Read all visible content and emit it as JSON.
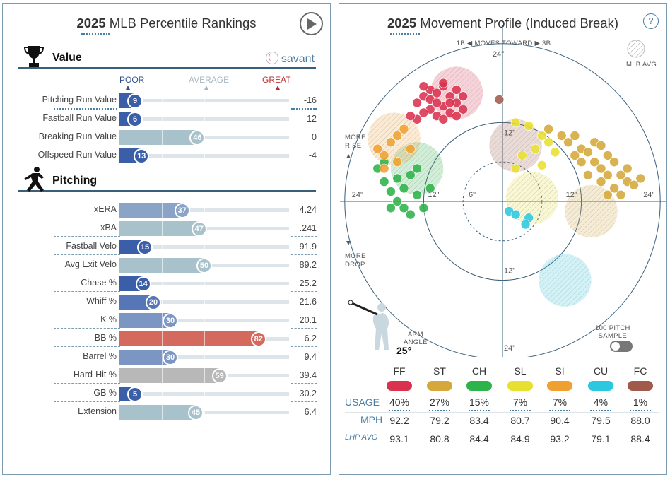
{
  "left_panel": {
    "title_year": "2025",
    "title_rest": "MLB Percentile Rankings",
    "value_section": "Value",
    "savant_label": "savant",
    "pitching_section": "Pitching",
    "scale": {
      "poor": "POOR",
      "average": "AVERAGE",
      "great": "GREAT"
    }
  },
  "right_panel": {
    "title_year": "2025",
    "title_rest": "Movement Profile (Induced Break)",
    "help": "?",
    "direction": "1B ◀  MOVES TOWARD  ▶ 3B",
    "mlb_avg": "MLB AVG.",
    "more_rise": "MORE\nRISE",
    "more_drop": "MORE\nDROP",
    "ring_labels": {
      "top24": "24\"",
      "top12": "12\"",
      "left24": "24\"",
      "left12": "12\"",
      "center6": "6\"",
      "right12": "12\"",
      "right24": "24\"",
      "bottom12": "12\"",
      "bottom24": "24\""
    },
    "arm_angle_label": "ARM\nANGLE",
    "arm_angle_value": "25°",
    "sample_toggle": "100 PITCH\nSAMPLE",
    "table_rows": {
      "usage": "USAGE",
      "mph": "MPH",
      "lhp": "LHP AVG"
    }
  },
  "chart_data": [
    {
      "type": "bar",
      "title": "2025 MLB Percentile Rankings",
      "groups": [
        {
          "name": "Value",
          "rows": [
            {
              "stat": "Pitching Run Value",
              "percentile": 9,
              "value": "-16",
              "color": "#3b5ea8"
            },
            {
              "stat": "Fastball Run Value",
              "percentile": 6,
              "value": "-12",
              "color": "#3b5ea8"
            },
            {
              "stat": "Breaking Run Value",
              "percentile": 46,
              "value": "0",
              "color": "#a8c2cc"
            },
            {
              "stat": "Offspeed Run Value",
              "percentile": 13,
              "value": "-4",
              "color": "#3b5ea8"
            }
          ]
        },
        {
          "name": "Pitching",
          "rows": [
            {
              "stat": "xERA",
              "percentile": 37,
              "value": "4.24",
              "color": "#8aa4c8"
            },
            {
              "stat": "xBA",
              "percentile": 47,
              "value": ".241",
              "color": "#a8c2cc"
            },
            {
              "stat": "Fastball Velo",
              "percentile": 15,
              "value": "91.9",
              "color": "#3b5ea8"
            },
            {
              "stat": "Avg Exit Velo",
              "percentile": 50,
              "value": "89.2",
              "color": "#a8c2cc"
            },
            {
              "stat": "Chase %",
              "percentile": 14,
              "value": "25.2",
              "color": "#3b5ea8"
            },
            {
              "stat": "Whiff %",
              "percentile": 20,
              "value": "21.6",
              "color": "#5676b8"
            },
            {
              "stat": "K %",
              "percentile": 30,
              "value": "20.1",
              "color": "#7c96c4"
            },
            {
              "stat": "BB %",
              "percentile": 82,
              "value": "6.2",
              "color": "#d46a5e"
            },
            {
              "stat": "Barrel %",
              "percentile": 30,
              "value": "9.4",
              "color": "#7c96c4"
            },
            {
              "stat": "Hard-Hit %",
              "percentile": 59,
              "value": "39.4",
              "color": "#b8b8b8"
            },
            {
              "stat": "GB %",
              "percentile": 5,
              "value": "30.2",
              "color": "#3b5ea8"
            },
            {
              "stat": "Extension",
              "percentile": 45,
              "value": "6.4",
              "color": "#a8c2cc"
            }
          ]
        }
      ],
      "xlim": [
        0,
        100
      ]
    },
    {
      "type": "scatter",
      "title": "2025 Movement Profile (Induced Break)",
      "xlim": [
        -24,
        24
      ],
      "ylim": [
        -24,
        24
      ],
      "pitches": [
        {
          "code": "FF",
          "color": "#d9324e",
          "usage": "40%",
          "mph": "92.2",
          "lhp_avg": "93.1",
          "avg": {
            "x": -10,
            "y": 15.5
          },
          "mlb_avg": {
            "x": -7,
            "y": 16.5
          }
        },
        {
          "code": "ST",
          "color": "#d4a83a",
          "usage": "27%",
          "mph": "79.2",
          "lhp_avg": "80.8",
          "avg": {
            "x": 14,
            "y": 2.5
          },
          "mlb_avg": {
            "x": 13.5,
            "y": -1.5
          }
        },
        {
          "code": "CH",
          "color": "#2eb24a",
          "usage": "15%",
          "mph": "83.4",
          "lhp_avg": "84.4",
          "avg": {
            "x": -17,
            "y": 3.5
          },
          "mlb_avg": {
            "x": -13,
            "y": 5
          }
        },
        {
          "code": "SL",
          "color": "#e8e030",
          "usage": "7%",
          "mph": "80.7",
          "lhp_avg": "84.9",
          "avg": {
            "x": 5.5,
            "y": 8
          },
          "mlb_avg": {
            "x": 4.5,
            "y": 0.5
          }
        },
        {
          "code": "SI",
          "color": "#f0a030",
          "usage": "7%",
          "mph": "90.4",
          "lhp_avg": "93.2",
          "avg": {
            "x": -18,
            "y": 8.5
          },
          "mlb_avg": {
            "x": -16.5,
            "y": 9.5
          }
        },
        {
          "code": "CU",
          "color": "#2cc8e0",
          "usage": "4%",
          "mph": "79.5",
          "lhp_avg": "79.1",
          "avg": {
            "x": 3,
            "y": -2.5
          },
          "mlb_avg": {
            "x": 9.5,
            "y": -12
          }
        },
        {
          "code": "FC",
          "color": "#a05a4a",
          "usage": "1%",
          "mph": "88.0",
          "lhp_avg": "88.4",
          "avg": {
            "x": 0,
            "y": 15.5
          },
          "mlb_avg": {
            "x": 2,
            "y": 8.5
          }
        }
      ],
      "points": {
        "FF": [
          [
            -12,
            16
          ],
          [
            -11,
            17
          ],
          [
            -10,
            16.5
          ],
          [
            -9,
            17.5
          ],
          [
            -8,
            16
          ],
          [
            -7,
            15
          ],
          [
            -9,
            14.5
          ],
          [
            -11,
            14
          ],
          [
            -13,
            15
          ],
          [
            -12,
            13.5
          ],
          [
            -10,
            13
          ],
          [
            -8,
            13.5
          ],
          [
            -6,
            14
          ],
          [
            -7,
            17
          ],
          [
            -9,
            18
          ],
          [
            -11,
            15.5
          ],
          [
            -13,
            12.5
          ],
          [
            -10,
            15
          ],
          [
            -8,
            15
          ],
          [
            -12,
            17.5
          ],
          [
            -6,
            16
          ],
          [
            -9,
            12.5
          ],
          [
            -14,
            13
          ],
          [
            -7,
            13
          ]
        ],
        "ST": [
          [
            7,
            11
          ],
          [
            9,
            10
          ],
          [
            10,
            9
          ],
          [
            11,
            10
          ],
          [
            12,
            8
          ],
          [
            13,
            7.5
          ],
          [
            12,
            6
          ],
          [
            14,
            6
          ],
          [
            15,
            5
          ],
          [
            16,
            4
          ],
          [
            15,
            3
          ],
          [
            17,
            6
          ],
          [
            18,
            4
          ],
          [
            19,
            3
          ],
          [
            17,
            2
          ],
          [
            16,
            1
          ],
          [
            18,
            1
          ],
          [
            20,
            2.5
          ],
          [
            14,
            9
          ],
          [
            13,
            4
          ],
          [
            11,
            7
          ],
          [
            16,
            7
          ],
          [
            19,
            5
          ],
          [
            21,
            3.5
          ],
          [
            15,
            8.5
          ]
        ],
        "CH": [
          [
            -19,
            5
          ],
          [
            -18,
            3
          ],
          [
            -17,
            1.5
          ],
          [
            -16,
            3.5
          ],
          [
            -15,
            2
          ],
          [
            -14,
            4
          ],
          [
            -16,
            0
          ],
          [
            -15,
            -1
          ],
          [
            -13,
            1
          ],
          [
            -18,
            6
          ],
          [
            -17,
            -1
          ],
          [
            -14,
            -2
          ],
          [
            -12,
            -1
          ],
          [
            -13,
            5
          ],
          [
            -11,
            2
          ]
        ],
        "SL": [
          [
            2,
            12
          ],
          [
            4,
            11.5
          ],
          [
            6,
            10
          ],
          [
            7,
            9
          ],
          [
            5,
            8
          ],
          [
            3,
            7
          ],
          [
            8,
            7.5
          ],
          [
            6,
            5.5
          ],
          [
            2,
            5
          ]
        ],
        "SI": [
          [
            -19,
            8
          ],
          [
            -18,
            7
          ],
          [
            -17,
            9
          ],
          [
            -16,
            10
          ],
          [
            -15,
            11
          ],
          [
            -18,
            5
          ],
          [
            -14,
            8
          ],
          [
            -16,
            6
          ]
        ],
        "CU": [
          [
            1,
            -1.5
          ],
          [
            2,
            -2
          ],
          [
            4,
            -2.5
          ],
          [
            3.5,
            -3.5
          ]
        ],
        "FC": [
          [
            -0.5,
            15.5
          ]
        ]
      }
    }
  ]
}
